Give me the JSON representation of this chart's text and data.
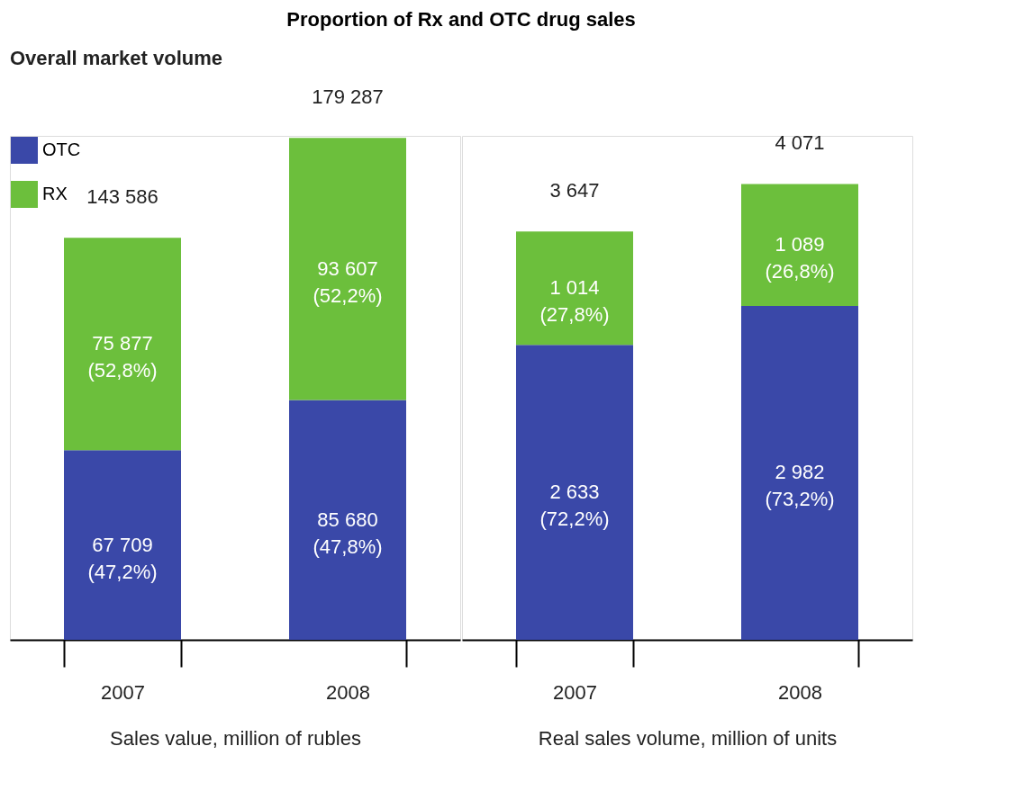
{
  "chart_data": [
    {
      "type": "bar",
      "title": "Proportion of Rx and OTC drug sales",
      "subtitle": "Overall market volume",
      "xlabel": "Sales value, million of rubles",
      "stacked": true,
      "legend": "top left",
      "categories": [
        "2007",
        "2008"
      ],
      "series": [
        {
          "name": "OTC",
          "color": "#3a48a8",
          "values": [
            67709,
            85680
          ],
          "value_labels": [
            "67 709\n(47,2%)",
            "85 680\n(47,8%)"
          ]
        },
        {
          "name": "RX",
          "color": "#6cbf3c",
          "values": [
            75877,
            93607
          ],
          "value_labels": [
            "75 877\n(52,8%)",
            "93 607\n(52,2%)"
          ]
        }
      ],
      "totals": [
        "143 586",
        "179 287"
      ]
    },
    {
      "type": "bar",
      "xlabel": "Real sales volume, million of units",
      "stacked": true,
      "legend": false,
      "categories": [
        "2007",
        "2008"
      ],
      "series": [
        {
          "name": "OTC",
          "color": "#3a48a8",
          "values": [
            2633,
            2982
          ],
          "value_labels": [
            "2 633\n(72,2%)",
            "2 982\n(73,2%)"
          ]
        },
        {
          "name": "RX",
          "color": "#6cbf3c",
          "values": [
            1014,
            1089
          ],
          "value_labels": [
            "1 014\n(27,8%)",
            "1 089\n(26,8%)"
          ]
        }
      ],
      "totals": [
        "3 647",
        "4 071"
      ]
    }
  ]
}
